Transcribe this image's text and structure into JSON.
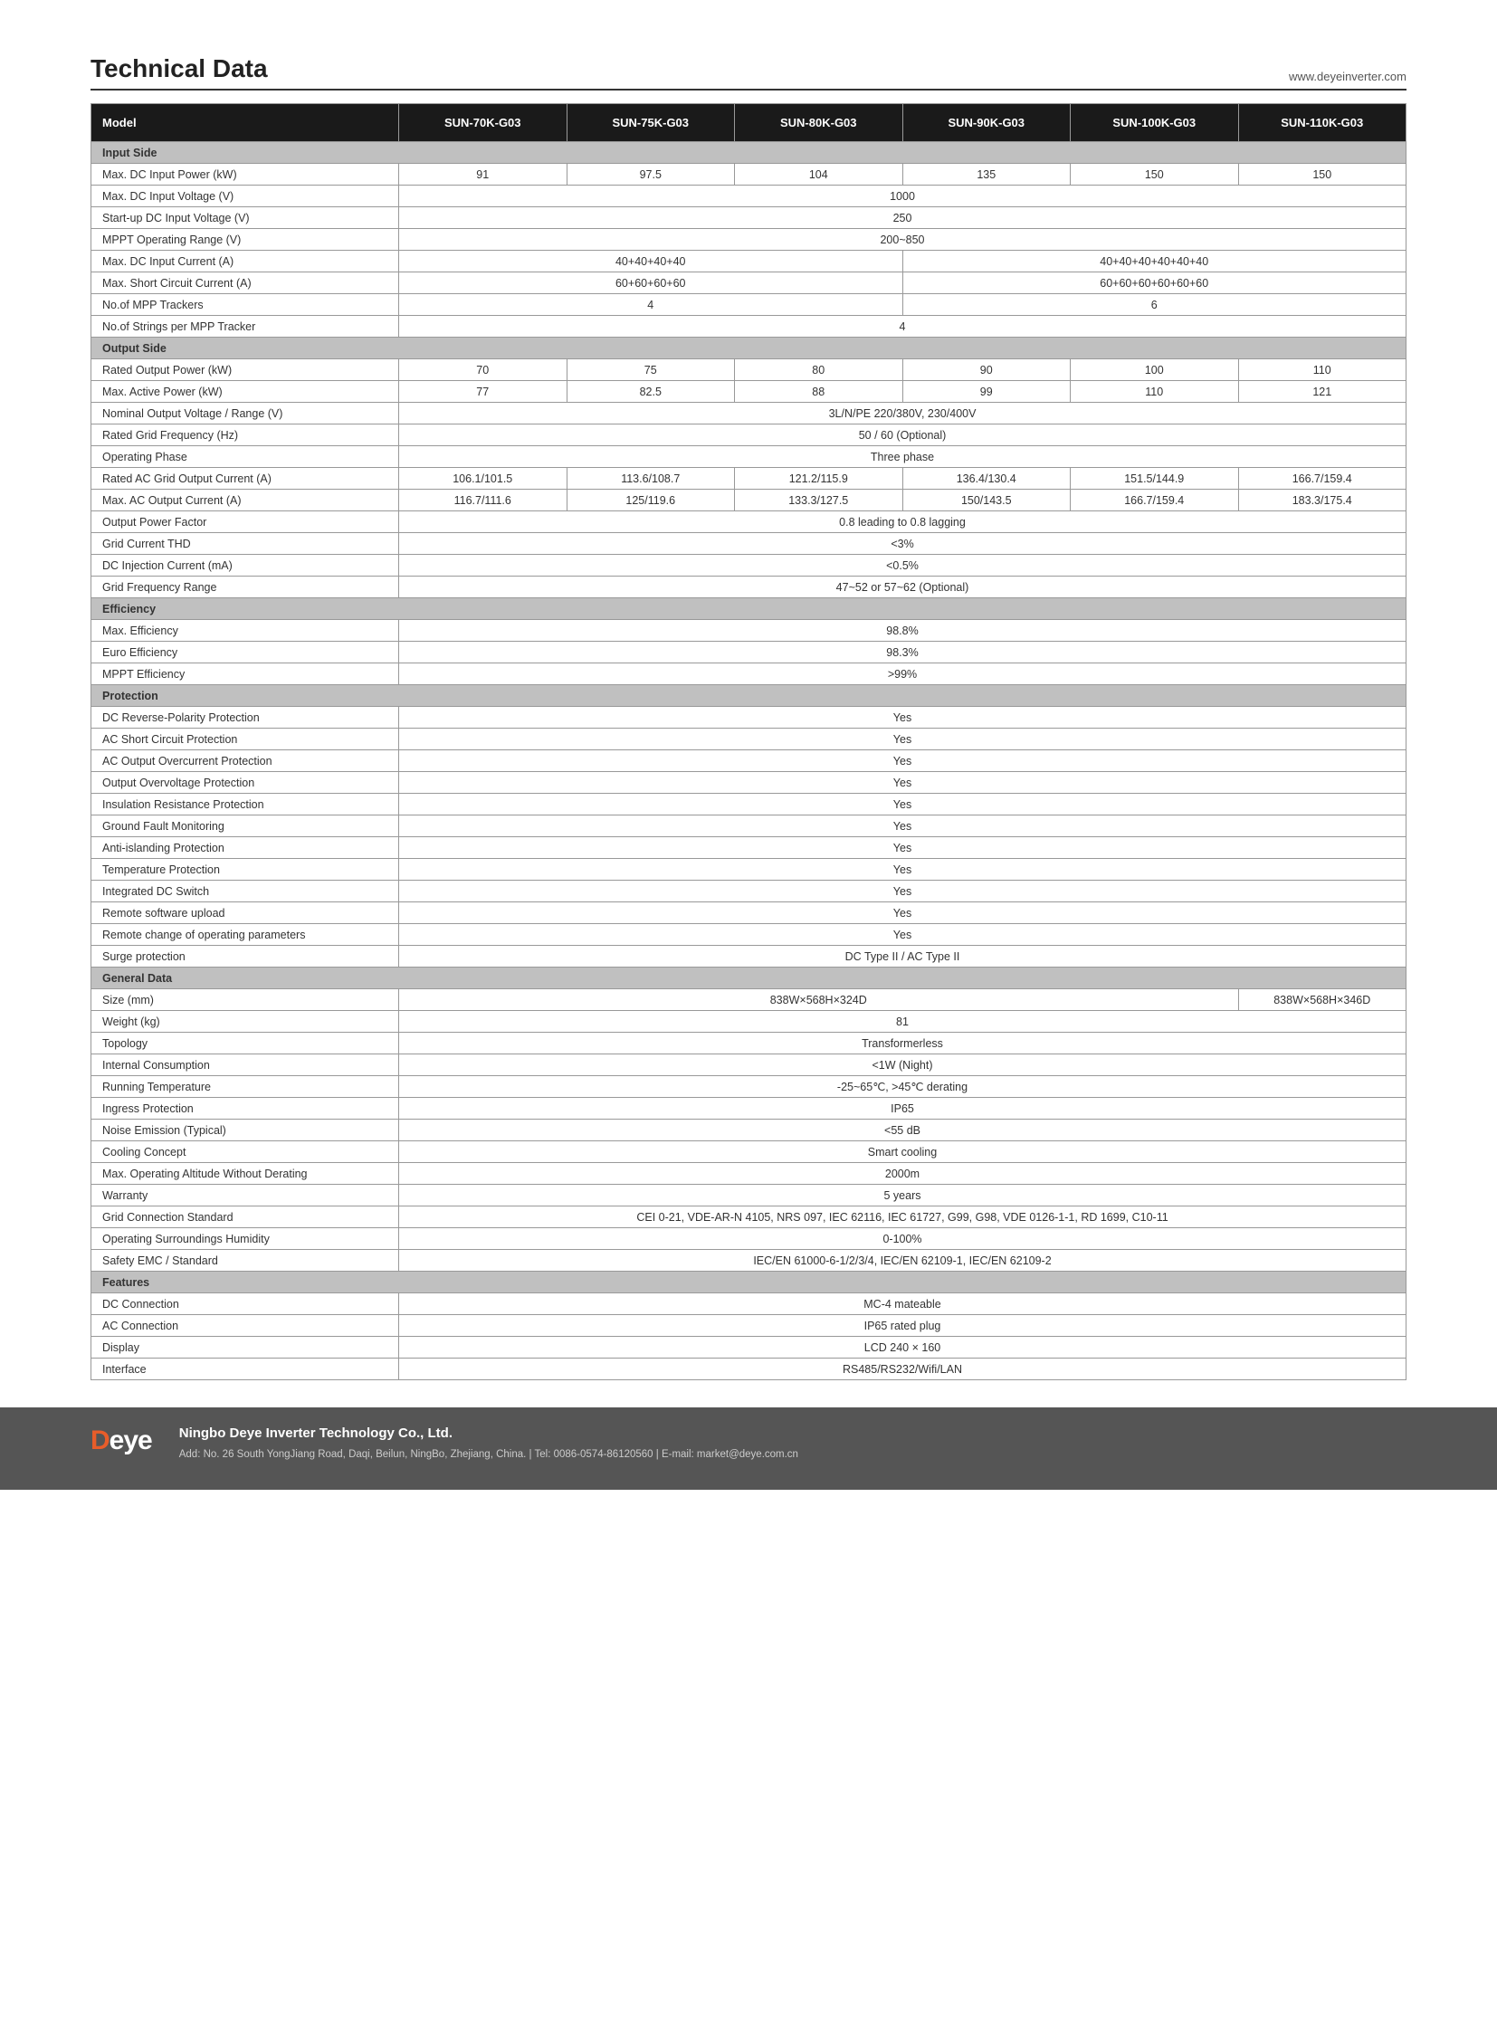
{
  "header": {
    "title": "Technical Data",
    "url": "www.deyeinverter.com"
  },
  "models": [
    "SUN-70K-G03",
    "SUN-75K-G03",
    "SUN-80K-G03",
    "SUN-90K-G03",
    "SUN-100K-G03",
    "SUN-110K-G03"
  ],
  "modelLabel": "Model",
  "sections": [
    {
      "title": "Input Side",
      "rows": [
        {
          "label": "Max. DC Input Power (kW)",
          "cells": [
            "91",
            "97.5",
            "104",
            "135",
            "150",
            "150"
          ]
        },
        {
          "label": "Max. DC Input Voltage (V)",
          "cells": [
            {
              "span": 6,
              "v": "1000"
            }
          ]
        },
        {
          "label": "Start-up DC Input Voltage (V)",
          "cells": [
            {
              "span": 6,
              "v": "250"
            }
          ]
        },
        {
          "label": "MPPT  Operating Range (V)",
          "cells": [
            {
              "span": 6,
              "v": "200~850"
            }
          ]
        },
        {
          "label": "Max. DC Input Current (A)",
          "cells": [
            {
              "span": 3,
              "v": "40+40+40+40"
            },
            {
              "span": 3,
              "v": "40+40+40+40+40+40"
            }
          ]
        },
        {
          "label": "Max. Short Circuit Current (A)",
          "cells": [
            {
              "span": 3,
              "v": "60+60+60+60"
            },
            {
              "span": 3,
              "v": "60+60+60+60+60+60"
            }
          ]
        },
        {
          "label": "No.of MPP Trackers",
          "cells": [
            {
              "span": 3,
              "v": "4"
            },
            {
              "span": 3,
              "v": "6"
            }
          ]
        },
        {
          "label": "No.of Strings per MPP Tracker",
          "cells": [
            {
              "span": 6,
              "v": "4"
            }
          ]
        }
      ]
    },
    {
      "title": "Output Side",
      "rows": [
        {
          "label": "Rated Output Power (kW)",
          "cells": [
            "70",
            "75",
            "80",
            "90",
            "100",
            "110"
          ]
        },
        {
          "label": "Max. Active Power (kW)",
          "cells": [
            "77",
            "82.5",
            "88",
            "99",
            "110",
            "121"
          ]
        },
        {
          "label": "Nominal Output Voltage / Range (V)",
          "cells": [
            {
              "span": 6,
              "v": "3L/N/PE 220/380V, 230/400V"
            }
          ]
        },
        {
          "label": "Rated Grid Frequency (Hz)",
          "cells": [
            {
              "span": 6,
              "v": "50 / 60 (Optional)"
            }
          ]
        },
        {
          "label": "Operating Phase",
          "cells": [
            {
              "span": 6,
              "v": "Three phase"
            }
          ]
        },
        {
          "label": "Rated AC Grid Output Current (A)",
          "cells": [
            "106.1/101.5",
            "113.6/108.7",
            "121.2/115.9",
            "136.4/130.4",
            "151.5/144.9",
            "166.7/159.4"
          ]
        },
        {
          "label": "Max. AC Output Current (A)",
          "cells": [
            "116.7/111.6",
            "125/119.6",
            "133.3/127.5",
            "150/143.5",
            "166.7/159.4",
            "183.3/175.4"
          ]
        },
        {
          "label": "Output Power Factor",
          "cells": [
            {
              "span": 6,
              "v": "0.8 leading to 0.8 lagging"
            }
          ]
        },
        {
          "label": "Grid Current THD",
          "cells": [
            {
              "span": 6,
              "v": "<3%"
            }
          ]
        },
        {
          "label": "DC Injection Current (mA)",
          "cells": [
            {
              "span": 6,
              "v": "<0.5%"
            }
          ]
        },
        {
          "label": "Grid Frequency Range",
          "cells": [
            {
              "span": 6,
              "v": "47~52 or 57~62 (Optional)"
            }
          ]
        }
      ]
    },
    {
      "title": "Efficiency",
      "rows": [
        {
          "label": "Max. Efficiency",
          "cells": [
            {
              "span": 6,
              "v": "98.8%"
            }
          ]
        },
        {
          "label": "Euro Efficiency",
          "cells": [
            {
              "span": 6,
              "v": "98.3%"
            }
          ]
        },
        {
          "label": "MPPT Efficiency",
          "cells": [
            {
              "span": 6,
              "v": ">99%"
            }
          ]
        }
      ]
    },
    {
      "title": "Protection",
      "rows": [
        {
          "label": "DC Reverse-Polarity Protection",
          "cells": [
            {
              "span": 6,
              "v": "Yes"
            }
          ]
        },
        {
          "label": "AC Short Circuit Protection",
          "cells": [
            {
              "span": 6,
              "v": "Yes"
            }
          ]
        },
        {
          "label": "AC Output Overcurrent Protection",
          "cells": [
            {
              "span": 6,
              "v": "Yes"
            }
          ]
        },
        {
          "label": "Output Overvoltage Protection",
          "cells": [
            {
              "span": 6,
              "v": "Yes"
            }
          ]
        },
        {
          "label": "Insulation Resistance Protection",
          "cells": [
            {
              "span": 6,
              "v": "Yes"
            }
          ]
        },
        {
          "label": "Ground Fault Monitoring",
          "cells": [
            {
              "span": 6,
              "v": "Yes"
            }
          ]
        },
        {
          "label": "Anti-islanding Protection",
          "cells": [
            {
              "span": 6,
              "v": "Yes"
            }
          ]
        },
        {
          "label": "Temperature Protection",
          "cells": [
            {
              "span": 6,
              "v": "Yes"
            }
          ]
        },
        {
          "label": "Integrated DC Switch",
          "cells": [
            {
              "span": 6,
              "v": "Yes"
            }
          ]
        },
        {
          "label": "Remote software upload",
          "cells": [
            {
              "span": 6,
              "v": "Yes"
            }
          ]
        },
        {
          "label": "Remote change of operating parameters",
          "cells": [
            {
              "span": 6,
              "v": "Yes"
            }
          ]
        },
        {
          "label": "Surge protection",
          "cells": [
            {
              "span": 6,
              "v": "DC Type II / AC Type II"
            }
          ]
        }
      ]
    },
    {
      "title": "General Data",
      "rows": [
        {
          "label": "Size (mm)",
          "cells": [
            {
              "span": 5,
              "v": "838W×568H×324D"
            },
            {
              "span": 1,
              "v": "838W×568H×346D"
            }
          ]
        },
        {
          "label": "Weight (kg)",
          "cells": [
            {
              "span": 6,
              "v": "81"
            }
          ]
        },
        {
          "label": "Topology",
          "cells": [
            {
              "span": 6,
              "v": "Transformerless"
            }
          ]
        },
        {
          "label": "Internal Consumption",
          "cells": [
            {
              "span": 6,
              "v": "<1W (Night)"
            }
          ]
        },
        {
          "label": "Running Temperature",
          "cells": [
            {
              "span": 6,
              "v": "-25~65℃, >45℃ derating"
            }
          ]
        },
        {
          "label": "Ingress Protection",
          "cells": [
            {
              "span": 6,
              "v": "IP65"
            }
          ]
        },
        {
          "label": "Noise Emission (Typical)",
          "cells": [
            {
              "span": 6,
              "v": "<55 dB"
            }
          ]
        },
        {
          "label": "Cooling Concept",
          "cells": [
            {
              "span": 6,
              "v": "Smart cooling"
            }
          ]
        },
        {
          "label": "Max. Operating Altitude Without Derating",
          "cells": [
            {
              "span": 6,
              "v": "2000m"
            }
          ]
        },
        {
          "label": "Warranty",
          "cells": [
            {
              "span": 6,
              "v": "5 years"
            }
          ]
        },
        {
          "label": "Grid Connection Standard",
          "cells": [
            {
              "span": 6,
              "v": "CEI 0-21, VDE-AR-N 4105, NRS 097, IEC 62116, IEC 61727, G99, G98, VDE 0126-1-1, RD 1699, C10-11"
            }
          ]
        },
        {
          "label": "Operating Surroundings Humidity",
          "cells": [
            {
              "span": 6,
              "v": "0-100%"
            }
          ]
        },
        {
          "label": "Safety EMC / Standard",
          "cells": [
            {
              "span": 6,
              "v": "IEC/EN 61000-6-1/2/3/4, IEC/EN 62109-1, IEC/EN 62109-2"
            }
          ]
        }
      ]
    },
    {
      "title": "Features",
      "rows": [
        {
          "label": "DC Connection",
          "cells": [
            {
              "span": 6,
              "v": "MC-4 mateable"
            }
          ]
        },
        {
          "label": "AC Connection",
          "cells": [
            {
              "span": 6,
              "v": "IP65 rated plug"
            }
          ]
        },
        {
          "label": "Display",
          "cells": [
            {
              "span": 6,
              "v": "LCD 240 × 160"
            }
          ]
        },
        {
          "label": "Interface",
          "cells": [
            {
              "span": 6,
              "v": "RS485/RS232/Wifi/LAN"
            }
          ]
        }
      ]
    }
  ],
  "footer": {
    "logo": {
      "pre": "D",
      "post": "eye"
    },
    "company": "Ningbo Deye Inverter Technology Co., Ltd.",
    "address": "Add: No. 26 South YongJiang Road, Daqi, Beilun, NingBo, Zhejiang, China.  |  Tel: 0086-0574-86120560  |  E-mail: market@deye.com.cn"
  }
}
